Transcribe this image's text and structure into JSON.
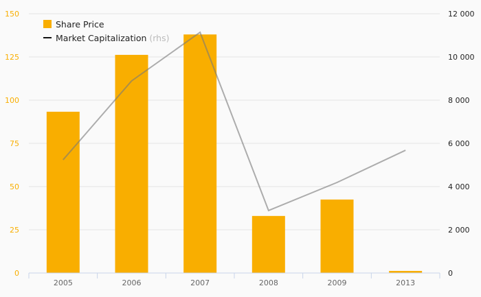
{
  "chart_data": {
    "type": "bar",
    "title": "",
    "categories": [
      "2005",
      "2006",
      "2007",
      "2008",
      "2009",
      "2013"
    ],
    "series": [
      {
        "name": "Share Price",
        "type": "bar",
        "axis": "left",
        "color": "#f9ae00",
        "values": [
          93.3,
          126.2,
          138,
          33,
          42.5,
          1.2
        ]
      },
      {
        "name": "Market Capitalization",
        "suffix": "(rhs)",
        "type": "line",
        "axis": "right",
        "color": "#aaaaaa",
        "values": [
          5240,
          8890,
          11140,
          2890,
          4190,
          5680
        ]
      }
    ],
    "ylim_left": [
      0,
      150
    ],
    "yticks_left": [
      "0",
      "25",
      "50",
      "75",
      "100",
      "125",
      "150"
    ],
    "ylim_right": [
      0,
      12000
    ],
    "yticks_right": [
      "0",
      "2 000",
      "4 000",
      "6 000",
      "8 000",
      "10 000",
      "12 000"
    ],
    "grid": true,
    "legend": "top-left"
  }
}
